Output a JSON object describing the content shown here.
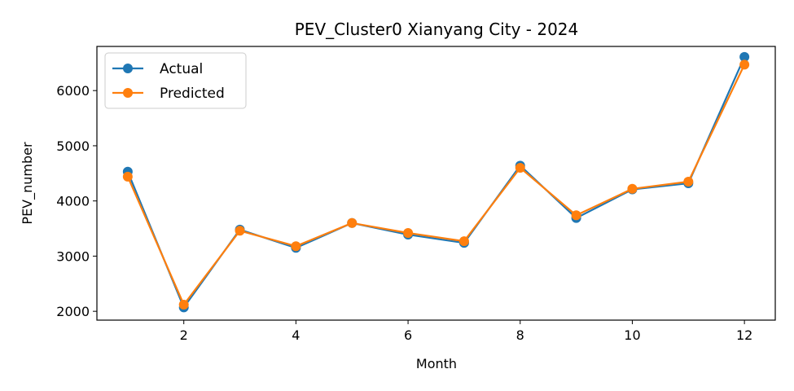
{
  "chart_data": {
    "type": "line",
    "title": "PEV_Cluster0 Xianyang City - 2024",
    "xlabel": "Month",
    "ylabel": "PEV_number",
    "x": [
      1,
      2,
      3,
      4,
      5,
      6,
      7,
      8,
      9,
      10,
      11,
      12
    ],
    "xticks": [
      2,
      4,
      6,
      8,
      10,
      12
    ],
    "yticks": [
      2000,
      3000,
      4000,
      5000,
      6000
    ],
    "xlim": [
      0.45,
      12.55
    ],
    "ylim": [
      1840,
      6800
    ],
    "grid": false,
    "legend_position": "upper left",
    "series": [
      {
        "name": "Actual",
        "color": "#1f77b4",
        "values": [
          4530,
          2070,
          3480,
          3150,
          3600,
          3390,
          3240,
          4640,
          3690,
          4210,
          4320,
          6610
        ]
      },
      {
        "name": "Predicted",
        "color": "#ff7f0e",
        "values": [
          4440,
          2120,
          3460,
          3180,
          3600,
          3420,
          3270,
          4600,
          3740,
          4220,
          4350,
          6470
        ]
      }
    ]
  }
}
